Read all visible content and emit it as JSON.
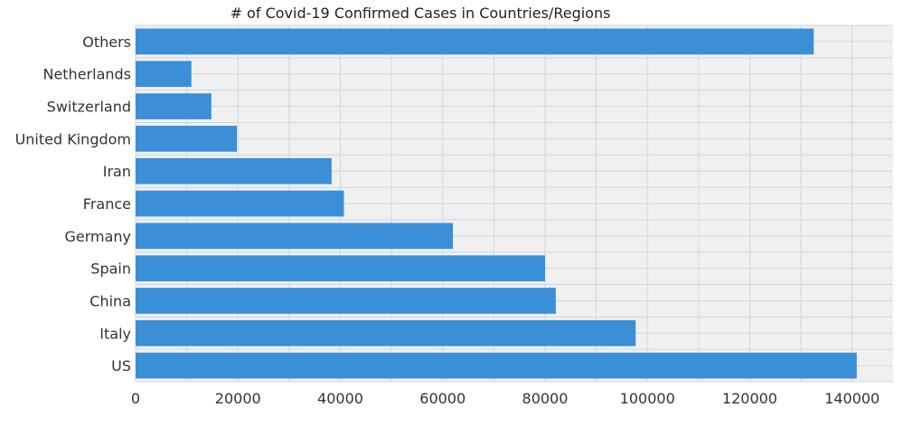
{
  "chart_data": {
    "type": "bar",
    "orientation": "horizontal",
    "title": "# of Covid-19 Confirmed Cases in Countries/Regions",
    "xlabel": "",
    "ylabel": "",
    "categories": [
      "US",
      "Italy",
      "China",
      "Spain",
      "Germany",
      "France",
      "Iran",
      "United Kingdom",
      "Switzerland",
      "Netherlands",
      "Others"
    ],
    "values": [
      140900,
      97700,
      82100,
      80000,
      62000,
      40700,
      38300,
      19800,
      14800,
      10900,
      132500
    ],
    "xlim": [
      0,
      148000
    ],
    "xticks": [
      0,
      20000,
      40000,
      60000,
      80000,
      100000,
      120000,
      140000
    ],
    "xtick_labels": [
      "0",
      "20000",
      "40000",
      "60000",
      "80000",
      "100000",
      "120000",
      "140000"
    ],
    "grid": true,
    "colors": {
      "bar": "#3a8fd6",
      "plot_background": "#f0f0f0",
      "grid": "#cfd8e0"
    }
  }
}
